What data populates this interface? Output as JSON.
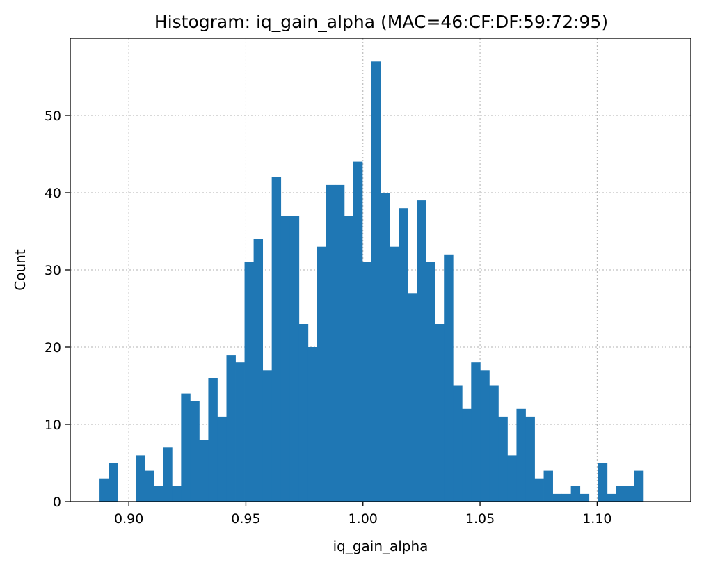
{
  "chart_data": {
    "type": "bar",
    "title": "Histogram: iq_gain_alpha (MAC=46:CF:DF:59:72:95)",
    "xlabel": "iq_gain_alpha",
    "ylabel": "Count",
    "xlim": [
      0.875,
      1.14
    ],
    "ylim": [
      0,
      60
    ],
    "grid": true,
    "bar_color": "#1f77b4",
    "bin_start": 0.8875,
    "bin_width": 0.003871,
    "values": [
      3,
      5,
      0,
      0,
      6,
      4,
      2,
      7,
      2,
      14,
      13,
      8,
      16,
      11,
      19,
      18,
      31,
      34,
      17,
      42,
      37,
      37,
      23,
      20,
      33,
      41,
      41,
      37,
      44,
      31,
      57,
      40,
      33,
      38,
      27,
      39,
      31,
      23,
      32,
      15,
      12,
      18,
      17,
      15,
      11,
      6,
      12,
      11,
      3,
      4,
      1,
      1,
      2,
      1,
      0,
      5,
      1,
      2,
      2,
      4
    ],
    "x_ticks": [
      {
        "value": 0.9,
        "label": "0.90"
      },
      {
        "value": 0.95,
        "label": "0.95"
      },
      {
        "value": 1.0,
        "label": "1.00"
      },
      {
        "value": 1.05,
        "label": "1.05"
      },
      {
        "value": 1.1,
        "label": "1.10"
      }
    ],
    "y_ticks": [
      {
        "value": 0,
        "label": "0"
      },
      {
        "value": 10,
        "label": "10"
      },
      {
        "value": 20,
        "label": "20"
      },
      {
        "value": 30,
        "label": "30"
      },
      {
        "value": 40,
        "label": "40"
      },
      {
        "value": 50,
        "label": "50"
      }
    ]
  }
}
